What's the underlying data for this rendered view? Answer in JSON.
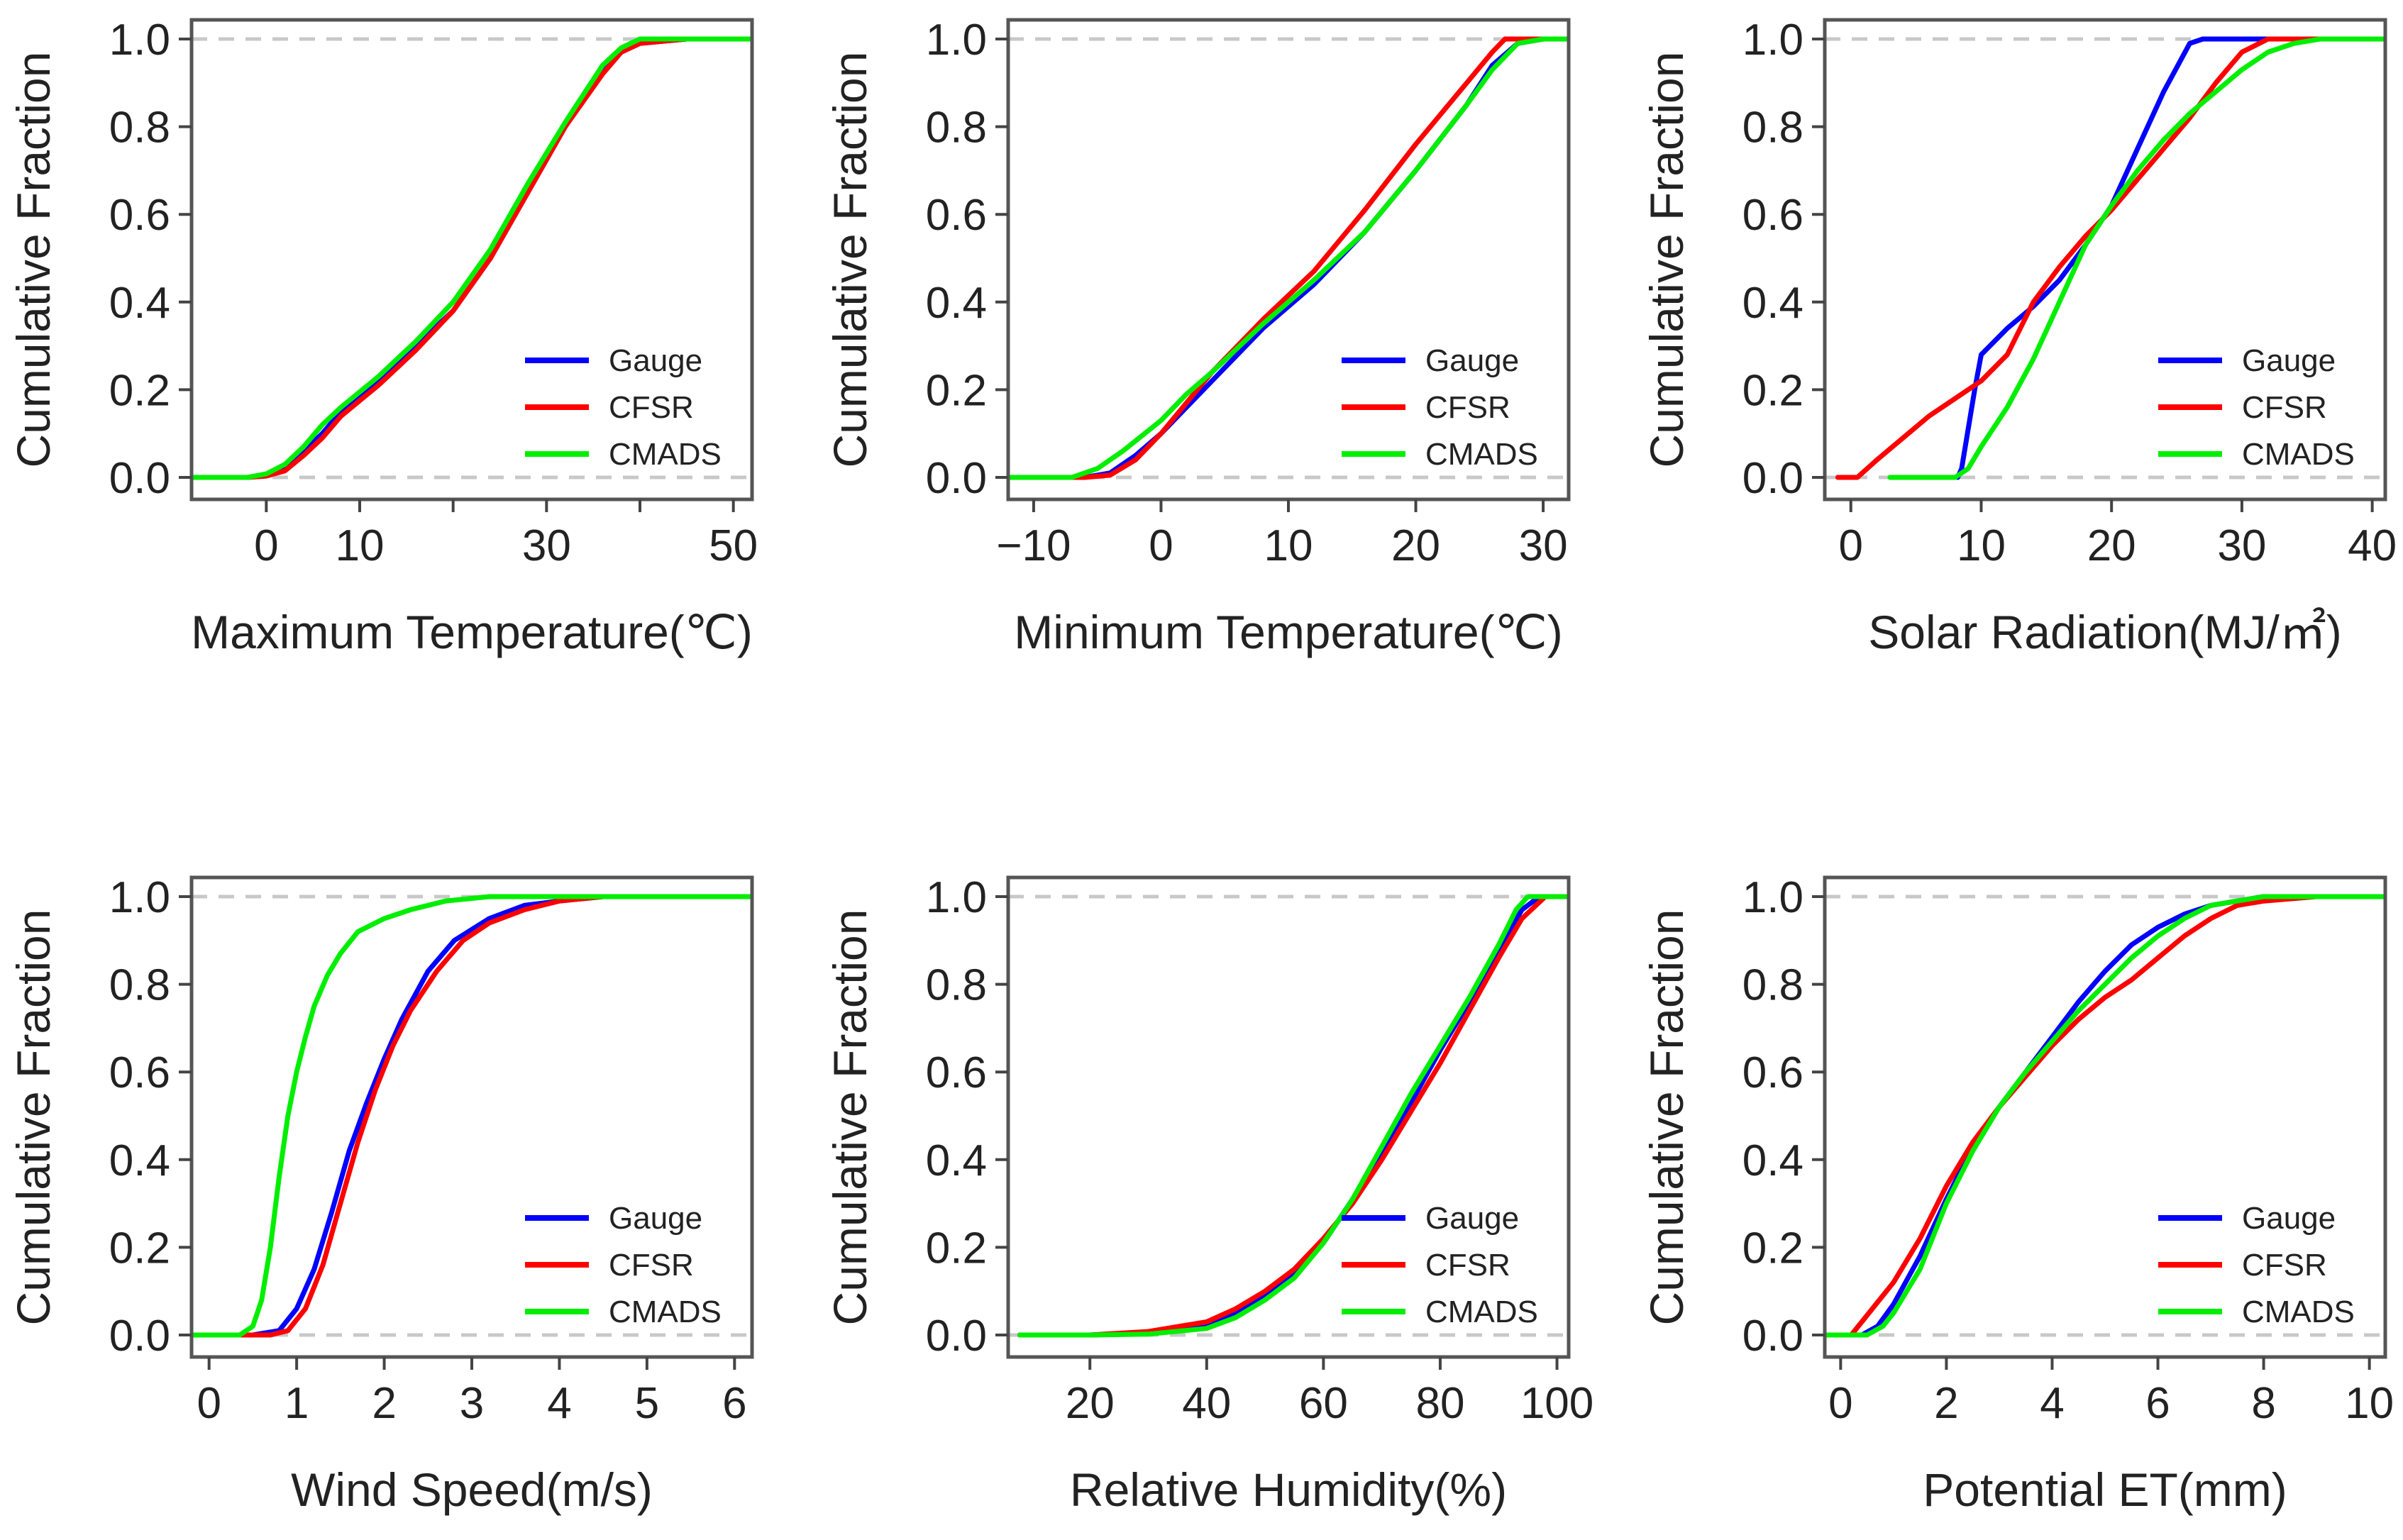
{
  "figure": {
    "ylabel": "Cumulative Fraction",
    "legend_placement": "bottom-right",
    "colors": {
      "Gauge": "#0000ff",
      "CFSR": "#ff0000",
      "CMADS": "#00ee00",
      "reference": "#c8c8c8"
    }
  },
  "chart_data": [
    {
      "type": "line",
      "id": "tmax",
      "xlabel": "Maximum Temperature(℃)",
      "ylabel": "Cumulative Fraction",
      "xlim": [
        -8,
        52
      ],
      "ylim": [
        0,
        1
      ],
      "xticks": [
        0,
        10,
        20,
        30,
        40,
        50
      ],
      "xtick_labels": [
        "0",
        "10",
        "",
        "30",
        "",
        "50"
      ],
      "yticks": [
        0,
        0.2,
        0.4,
        0.6,
        0.8,
        1.0
      ],
      "ytick_labels": [
        "0.0",
        "0.2",
        "0.4",
        "0.6",
        "0.8",
        "1.0"
      ],
      "reference_lines": [
        0,
        1
      ],
      "series": [
        {
          "name": "Gauge",
          "color": "#0000ff",
          "x": [
            -8,
            -2,
            0,
            2,
            4,
            6,
            8,
            12,
            16,
            20,
            24,
            28,
            32,
            36,
            38,
            40,
            45,
            50,
            52
          ],
          "y": [
            0,
            0,
            0.005,
            0.02,
            0.06,
            0.1,
            0.15,
            0.22,
            0.3,
            0.38,
            0.5,
            0.65,
            0.8,
            0.93,
            0.97,
            0.99,
            1.0,
            1.0,
            1.0
          ]
        },
        {
          "name": "CFSR",
          "color": "#ff0000",
          "x": [
            -8,
            -2,
            0,
            2,
            4,
            6,
            8,
            12,
            16,
            20,
            24,
            28,
            32,
            36,
            38,
            40,
            45,
            52
          ],
          "y": [
            0,
            0,
            0.003,
            0.015,
            0.05,
            0.09,
            0.14,
            0.21,
            0.29,
            0.38,
            0.5,
            0.65,
            0.8,
            0.92,
            0.97,
            0.99,
            1.0,
            1.0
          ]
        },
        {
          "name": "CMADS",
          "color": "#00ee00",
          "x": [
            -8,
            -2,
            0,
            2,
            4,
            6,
            8,
            12,
            16,
            20,
            24,
            28,
            32,
            36,
            38,
            40,
            45,
            52
          ],
          "y": [
            0,
            0,
            0.008,
            0.03,
            0.07,
            0.12,
            0.16,
            0.23,
            0.31,
            0.4,
            0.52,
            0.67,
            0.81,
            0.94,
            0.98,
            1.0,
            1.0,
            1.0
          ]
        }
      ]
    },
    {
      "type": "line",
      "id": "tmin",
      "xlabel": "Minimum Temperature(℃)",
      "ylabel": "Cumulative Fraction",
      "xlim": [
        -12,
        32
      ],
      "ylim": [
        0,
        1
      ],
      "xticks": [
        -10,
        0,
        10,
        20,
        30
      ],
      "xtick_labels": [
        "−10",
        "0",
        "10",
        "20",
        "30"
      ],
      "yticks": [
        0,
        0.2,
        0.4,
        0.6,
        0.8,
        1.0
      ],
      "ytick_labels": [
        "0.0",
        "0.2",
        "0.4",
        "0.6",
        "0.8",
        "1.0"
      ],
      "reference_lines": [
        0,
        1
      ],
      "series": [
        {
          "name": "Gauge",
          "color": "#0000ff",
          "x": [
            -12,
            -6,
            -4,
            -2,
            0,
            2,
            4,
            8,
            12,
            16,
            20,
            24,
            26,
            28,
            30,
            32
          ],
          "y": [
            0,
            0,
            0.01,
            0.05,
            0.1,
            0.16,
            0.22,
            0.34,
            0.44,
            0.56,
            0.7,
            0.85,
            0.94,
            0.99,
            1.0,
            1.0
          ]
        },
        {
          "name": "CFSR",
          "color": "#ff0000",
          "x": [
            -12,
            -6,
            -4,
            -2,
            0,
            2,
            4,
            8,
            12,
            16,
            20,
            24,
            26,
            27,
            28,
            32
          ],
          "y": [
            0,
            0,
            0.005,
            0.04,
            0.1,
            0.17,
            0.24,
            0.36,
            0.47,
            0.61,
            0.76,
            0.9,
            0.97,
            1.0,
            1.0,
            1.0
          ]
        },
        {
          "name": "CMADS",
          "color": "#00ee00",
          "x": [
            -12,
            -7,
            -5,
            -3,
            0,
            2,
            4,
            8,
            12,
            16,
            20,
            24,
            26,
            28,
            30,
            32
          ],
          "y": [
            0,
            0,
            0.02,
            0.06,
            0.13,
            0.19,
            0.24,
            0.35,
            0.45,
            0.56,
            0.7,
            0.85,
            0.93,
            0.99,
            1.0,
            1.0
          ]
        }
      ]
    },
    {
      "type": "line",
      "id": "solar",
      "xlabel": "Solar Radiation(MJ/㎡)",
      "ylabel": "Cumulative Fraction",
      "xlim": [
        -2,
        41
      ],
      "ylim": [
        0,
        1
      ],
      "xticks": [
        0,
        10,
        20,
        30,
        40
      ],
      "xtick_labels": [
        "0",
        "10",
        "20",
        "30",
        "40"
      ],
      "yticks": [
        0,
        0.2,
        0.4,
        0.6,
        0.8,
        1.0
      ],
      "ytick_labels": [
        "0.0",
        "0.2",
        "0.4",
        "0.6",
        "0.8",
        "1.0"
      ],
      "reference_lines": [
        0,
        1
      ],
      "series": [
        {
          "name": "Gauge",
          "color": "#0000ff",
          "x": [
            8.2,
            8.5,
            9.5,
            10,
            12,
            14,
            16,
            18,
            20,
            22,
            24,
            26,
            27,
            30,
            41
          ],
          "y": [
            0,
            0.02,
            0.2,
            0.28,
            0.34,
            0.39,
            0.45,
            0.53,
            0.62,
            0.75,
            0.88,
            0.99,
            1.0,
            1.0,
            1.0
          ]
        },
        {
          "name": "CFSR",
          "color": "#ff0000",
          "x": [
            -1,
            0.5,
            2,
            4,
            6,
            8,
            10,
            12,
            14,
            16,
            18,
            20,
            22,
            24,
            26,
            28,
            30,
            32,
            41
          ],
          "y": [
            0,
            0,
            0.04,
            0.09,
            0.14,
            0.18,
            0.22,
            0.28,
            0.4,
            0.48,
            0.55,
            0.61,
            0.68,
            0.75,
            0.82,
            0.9,
            0.97,
            1.0,
            1.0
          ]
        },
        {
          "name": "CMADS",
          "color": "#00ee00",
          "x": [
            3,
            8,
            9,
            10,
            12,
            14,
            16,
            18,
            20,
            22,
            24,
            26,
            28,
            30,
            32,
            34,
            36,
            41
          ],
          "y": [
            0,
            0,
            0.02,
            0.07,
            0.16,
            0.27,
            0.4,
            0.53,
            0.62,
            0.7,
            0.77,
            0.83,
            0.88,
            0.93,
            0.97,
            0.99,
            1.0,
            1.0
          ]
        }
      ]
    },
    {
      "type": "line",
      "id": "wind",
      "xlabel": "Wind Speed(m/s)",
      "ylabel": "Cumulative Fraction",
      "xlim": [
        -0.2,
        6.2
      ],
      "ylim": [
        0,
        1
      ],
      "xticks": [
        0,
        1,
        2,
        3,
        4,
        5,
        6
      ],
      "xtick_labels": [
        "0",
        "1",
        "2",
        "3",
        "4",
        "5",
        "6"
      ],
      "yticks": [
        0,
        0.2,
        0.4,
        0.6,
        0.8,
        1.0
      ],
      "ytick_labels": [
        "0.0",
        "0.2",
        "0.4",
        "0.6",
        "0.8",
        "1.0"
      ],
      "reference_lines": [
        0,
        1
      ],
      "series": [
        {
          "name": "Gauge",
          "color": "#0000ff",
          "x": [
            -0.2,
            0.5,
            0.8,
            1.0,
            1.2,
            1.4,
            1.6,
            1.8,
            2.0,
            2.2,
            2.5,
            2.8,
            3.2,
            3.6,
            4.0,
            4.5,
            5.0,
            6.2
          ],
          "y": [
            0,
            0,
            0.01,
            0.06,
            0.15,
            0.28,
            0.42,
            0.53,
            0.63,
            0.72,
            0.83,
            0.9,
            0.95,
            0.98,
            0.99,
            1.0,
            1.0,
            1.0
          ]
        },
        {
          "name": "CFSR",
          "color": "#ff0000",
          "x": [
            -0.2,
            0.7,
            0.9,
            1.1,
            1.3,
            1.5,
            1.7,
            1.9,
            2.1,
            2.3,
            2.6,
            2.9,
            3.2,
            3.6,
            4.0,
            4.5,
            5.0,
            6.2
          ],
          "y": [
            0,
            0,
            0.01,
            0.06,
            0.16,
            0.3,
            0.44,
            0.56,
            0.66,
            0.74,
            0.83,
            0.9,
            0.94,
            0.97,
            0.99,
            1.0,
            1.0,
            1.0
          ]
        },
        {
          "name": "CMADS",
          "color": "#00ee00",
          "x": [
            -0.2,
            0.35,
            0.5,
            0.6,
            0.7,
            0.8,
            0.9,
            1.0,
            1.1,
            1.2,
            1.35,
            1.5,
            1.7,
            2.0,
            2.3,
            2.7,
            3.2,
            4.0,
            6.2
          ],
          "y": [
            0,
            0,
            0.02,
            0.08,
            0.2,
            0.36,
            0.5,
            0.6,
            0.68,
            0.75,
            0.82,
            0.87,
            0.92,
            0.95,
            0.97,
            0.99,
            1.0,
            1.0,
            1.0
          ]
        }
      ]
    },
    {
      "type": "line",
      "id": "rh",
      "xlabel": "Relative Humidity(%)",
      "ylabel": "Cumulative Fraction",
      "xlim": [
        6,
        102
      ],
      "ylim": [
        0,
        1
      ],
      "xticks": [
        20,
        40,
        60,
        80,
        100
      ],
      "xtick_labels": [
        "20",
        "40",
        "60",
        "80",
        "100"
      ],
      "yticks": [
        0,
        0.2,
        0.4,
        0.6,
        0.8,
        1.0
      ],
      "ytick_labels": [
        "0.0",
        "0.2",
        "0.4",
        "0.6",
        "0.8",
        "1.0"
      ],
      "reference_lines": [
        0,
        1
      ],
      "series": [
        {
          "name": "Gauge",
          "color": "#0000ff",
          "x": [
            8,
            20,
            30,
            40,
            45,
            50,
            55,
            60,
            65,
            70,
            75,
            80,
            85,
            90,
            94,
            97,
            102
          ],
          "y": [
            0,
            0,
            0.003,
            0.02,
            0.05,
            0.09,
            0.14,
            0.21,
            0.31,
            0.42,
            0.53,
            0.65,
            0.76,
            0.88,
            0.97,
            1.0,
            1.0
          ]
        },
        {
          "name": "CFSR",
          "color": "#ff0000",
          "x": [
            8,
            20,
            30,
            40,
            45,
            50,
            55,
            60,
            65,
            70,
            75,
            80,
            85,
            90,
            94,
            98,
            102
          ],
          "y": [
            0,
            0,
            0.008,
            0.03,
            0.06,
            0.1,
            0.15,
            0.22,
            0.3,
            0.4,
            0.51,
            0.62,
            0.74,
            0.86,
            0.95,
            1.0,
            1.0
          ]
        },
        {
          "name": "CMADS",
          "color": "#00ee00",
          "x": [
            8,
            20,
            30,
            40,
            45,
            50,
            55,
            60,
            65,
            70,
            75,
            80,
            85,
            90,
            93,
            95,
            102
          ],
          "y": [
            0,
            0,
            0.002,
            0.015,
            0.04,
            0.08,
            0.13,
            0.21,
            0.31,
            0.43,
            0.55,
            0.66,
            0.77,
            0.89,
            0.97,
            1.0,
            1.0
          ]
        }
      ]
    },
    {
      "type": "line",
      "id": "pet",
      "xlabel": "Potential ET(mm)",
      "ylabel": "Cumulative Fraction",
      "xlim": [
        -0.3,
        10.3
      ],
      "ylim": [
        0,
        1
      ],
      "xticks": [
        0,
        2,
        4,
        6,
        8,
        10
      ],
      "xtick_labels": [
        "0",
        "2",
        "4",
        "6",
        "8",
        "10"
      ],
      "yticks": [
        0,
        0.2,
        0.4,
        0.6,
        0.8,
        1.0
      ],
      "ytick_labels": [
        "0.0",
        "0.2",
        "0.4",
        "0.6",
        "0.8",
        "1.0"
      ],
      "reference_lines": [
        0,
        1
      ],
      "series": [
        {
          "name": "Gauge",
          "color": "#0000ff",
          "x": [
            -0.3,
            0.4,
            0.7,
            1.0,
            1.5,
            2.0,
            2.5,
            3.0,
            3.5,
            4.0,
            4.5,
            5.0,
            5.5,
            6.0,
            6.5,
            7.0,
            7.5,
            8.0,
            9.0,
            10.3
          ],
          "y": [
            0,
            0,
            0.02,
            0.07,
            0.18,
            0.31,
            0.43,
            0.52,
            0.6,
            0.68,
            0.76,
            0.83,
            0.89,
            0.93,
            0.96,
            0.98,
            0.99,
            1.0,
            1.0,
            1.0
          ]
        },
        {
          "name": "CFSR",
          "color": "#ff0000",
          "x": [
            -0.3,
            0.2,
            0.4,
            1.0,
            1.5,
            2.0,
            2.5,
            3.0,
            3.5,
            4.0,
            4.5,
            5.0,
            5.5,
            6.0,
            6.5,
            7.0,
            7.5,
            8.0,
            9.0,
            10.3
          ],
          "y": [
            0,
            0,
            0.03,
            0.12,
            0.22,
            0.34,
            0.44,
            0.52,
            0.59,
            0.66,
            0.72,
            0.77,
            0.81,
            0.86,
            0.91,
            0.95,
            0.98,
            0.99,
            1.0,
            1.0
          ]
        },
        {
          "name": "CMADS",
          "color": "#00ee00",
          "x": [
            -0.3,
            0.5,
            0.8,
            1.0,
            1.5,
            2.0,
            2.5,
            3.0,
            3.5,
            4.0,
            4.5,
            5.0,
            5.5,
            6.0,
            6.5,
            7.0,
            7.5,
            8.0,
            9.0,
            10.3
          ],
          "y": [
            0,
            0,
            0.02,
            0.05,
            0.15,
            0.3,
            0.42,
            0.52,
            0.6,
            0.67,
            0.74,
            0.8,
            0.86,
            0.91,
            0.95,
            0.98,
            0.99,
            1.0,
            1.0,
            1.0
          ]
        }
      ]
    }
  ]
}
